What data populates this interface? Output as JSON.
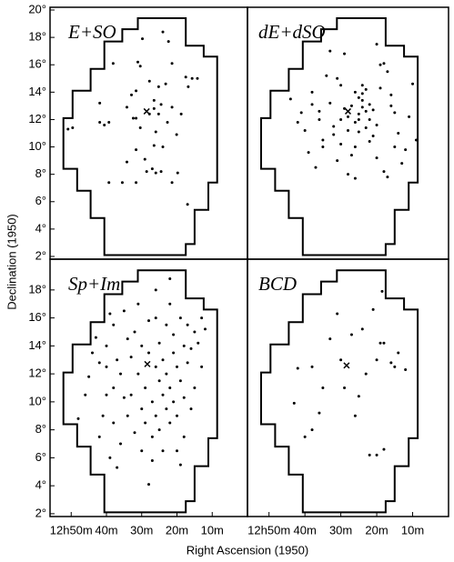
{
  "xlabel": "Right Ascension (1950)",
  "ylabel": "Declination (1950)",
  "boundary": {
    "x": [
      31.1,
      17.5,
      17.5,
      12.4,
      12.4,
      8.6,
      8.6,
      11.1,
      11.1,
      15.0,
      15.0,
      17.5,
      17.5,
      40.6,
      40.6,
      44.5,
      44.5,
      48.3,
      48.3,
      52.2,
      52.2,
      49.6,
      49.6,
      44.5,
      44.5,
      40.6,
      40.6,
      35.5,
      35.5,
      31.1
    ],
    "y": [
      19.4,
      19.4,
      17.4,
      17.4,
      16.6,
      16.6,
      7.4,
      7.4,
      5.4,
      5.4,
      2.9,
      2.9,
      2.1,
      2.1,
      4.8,
      4.8,
      6.8,
      6.8,
      8.4,
      8.4,
      12.1,
      12.1,
      14.1,
      14.1,
      15.7,
      15.7,
      17.7,
      17.7,
      18.6,
      18.6
    ]
  },
  "chart_data": [
    {
      "type": "scatter",
      "title": "E+SO",
      "xlim": [
        56,
        0
      ],
      "ylim": [
        1.8,
        20.2
      ],
      "color": "#000000",
      "yticks": [
        {
          "value": 20,
          "label": "20°"
        },
        {
          "value": 18,
          "label": "18°"
        },
        {
          "value": 16,
          "label": "16°"
        },
        {
          "value": 14,
          "label": "14°"
        },
        {
          "value": 12,
          "label": "12°"
        },
        {
          "value": 10,
          "label": "10°"
        },
        {
          "value": 8,
          "label": "8°"
        },
        {
          "value": 6,
          "label": "6°"
        },
        {
          "value": 4,
          "label": "4°"
        },
        {
          "value": 2,
          "label": "2°"
        }
      ],
      "cross": {
        "x": 28.6,
        "y": 12.6
      },
      "x": [
        29.8,
        24.0,
        22.4,
        31.1,
        30.4,
        38.1,
        21.4,
        17.5,
        15.7,
        14.2,
        16.8,
        27.8,
        25.2,
        23.2,
        31.6,
        32.9,
        41.9,
        34.2,
        26.5,
        24.5,
        21.4,
        27.8,
        26.5,
        25.2,
        18.8,
        32.4,
        31.6,
        41.9,
        40.6,
        39.3,
        49.6,
        50.9,
        30.4,
        26.0,
        22.7,
        20.1,
        26.5,
        24.0,
        31.6,
        29.1,
        34.2,
        27.0,
        26.0,
        24.5,
        28.6,
        31.6,
        35.5,
        21.4,
        39.3,
        17.0,
        19.8
      ],
      "y": [
        17.9,
        18.4,
        17.7,
        16.2,
        15.9,
        16.1,
        16.1,
        15.1,
        15.0,
        15.0,
        14.4,
        14.8,
        14.4,
        14.6,
        14.1,
        13.8,
        13.2,
        12.9,
        13.4,
        13.1,
        12.9,
        12.4,
        12.8,
        12.4,
        12.4,
        12.1,
        12.1,
        11.8,
        11.6,
        11.8,
        11.4,
        11.3,
        11.4,
        11.1,
        11.8,
        10.9,
        10.1,
        10.0,
        9.8,
        9.1,
        8.9,
        8.4,
        8.1,
        8.2,
        8.2,
        7.4,
        7.4,
        7.4,
        7.4,
        5.8,
        8.1
      ]
    },
    {
      "type": "scatter",
      "title": "dE+dSO",
      "xlim": [
        56,
        0
      ],
      "ylim": [
        1.8,
        20.2
      ],
      "color": "#000000",
      "cross": {
        "x": 28.0,
        "y": 12.6
      },
      "x": [
        44,
        41,
        40,
        38,
        36,
        35,
        33,
        32,
        31,
        30,
        29,
        28,
        27,
        26,
        25,
        25,
        24,
        24,
        23,
        23,
        22,
        22,
        21,
        21,
        20,
        19,
        18,
        17,
        16,
        15,
        14,
        12,
        10,
        9,
        34,
        37,
        39,
        30,
        28,
        26,
        27,
        29,
        31,
        33,
        35,
        24,
        23,
        22,
        20,
        18,
        17,
        16,
        25,
        26,
        28,
        30,
        32,
        36,
        38,
        42,
        20,
        19,
        15,
        13,
        11,
        24,
        25,
        26
      ],
      "y": [
        13.5,
        12.5,
        11.2,
        14.0,
        12.0,
        10.5,
        13.2,
        11.5,
        9.0,
        14.5,
        12.8,
        12.2,
        13.0,
        11.8,
        13.6,
        12.4,
        13.9,
        12.9,
        14.2,
        11.4,
        13.1,
        12.0,
        12.7,
        10.8,
        11.6,
        16.0,
        16.1,
        15.5,
        13.8,
        12.5,
        11.0,
        9.8,
        14.6,
        10.5,
        15.2,
        8.5,
        9.6,
        10.2,
        8.0,
        7.7,
        9.4,
        16.8,
        15.0,
        17.0,
        10.0,
        14.5,
        12.6,
        10.4,
        9.2,
        8.2,
        7.8,
        13.0,
        11.1,
        10.0,
        11.2,
        12.0,
        10.9,
        12.6,
        13.1,
        11.8,
        17.5,
        14.3,
        10.0,
        8.8,
        12.2,
        13.4,
        12.0,
        14.0
      ]
    },
    {
      "type": "scatter",
      "title": "Sp+Im",
      "xlim": [
        56,
        0
      ],
      "ylim": [
        1.8,
        20.2
      ],
      "color": "#000000",
      "yticks": [
        {
          "value": 18,
          "label": "18°"
        },
        {
          "value": 16,
          "label": "16°"
        },
        {
          "value": 14,
          "label": "14°"
        },
        {
          "value": 12,
          "label": "12°"
        },
        {
          "value": 10,
          "label": "10°"
        },
        {
          "value": 8,
          "label": "8°"
        },
        {
          "value": 6,
          "label": "6°"
        },
        {
          "value": 4,
          "label": "4°"
        },
        {
          "value": 2,
          "label": "2°"
        }
      ],
      "xticks": [
        {
          "value": 50,
          "label": "12h50m"
        },
        {
          "value": 40,
          "label": "40m"
        },
        {
          "value": 30,
          "label": "30m"
        },
        {
          "value": 20,
          "label": "20m"
        },
        {
          "value": 10,
          "label": "10m"
        }
      ],
      "cross": {
        "x": 28.4,
        "y": 12.7
      },
      "x": [
        43,
        44,
        42,
        45,
        40,
        38,
        37,
        36,
        35,
        34,
        33,
        33,
        32,
        31,
        31,
        30,
        30,
        29,
        29,
        28,
        28,
        27,
        27,
        26,
        26,
        26,
        25,
        25,
        25,
        24,
        24,
        24,
        23,
        23,
        23,
        22,
        22,
        22,
        21,
        21,
        21,
        20,
        20,
        19,
        19,
        18,
        18,
        17,
        17,
        16,
        15,
        14,
        13,
        12,
        13,
        15,
        16,
        18,
        20,
        19,
        28,
        36,
        38,
        39,
        40,
        41,
        42,
        37,
        35,
        34,
        32,
        30,
        27,
        40,
        46,
        48,
        38,
        39,
        22,
        26
      ],
      "y": [
        14.6,
        13.5,
        12.8,
        11.8,
        14.0,
        15.5,
        13.0,
        12.0,
        16.5,
        14.5,
        13.2,
        10.5,
        15.0,
        17.0,
        12.0,
        9.5,
        14.0,
        11.0,
        8.5,
        13.5,
        15.8,
        10.0,
        7.5,
        12.5,
        9.0,
        16.0,
        11.5,
        8.0,
        14.2,
        10.5,
        13.0,
        6.5,
        9.5,
        15.5,
        12.0,
        11.0,
        8.5,
        17.0,
        13.5,
        10.0,
        14.8,
        12.5,
        9.0,
        16.0,
        11.5,
        14.0,
        7.5,
        15.5,
        12.8,
        13.8,
        15.0,
        14.2,
        16.0,
        15.2,
        12.5,
        11.0,
        9.5,
        10.3,
        6.5,
        5.5,
        4.1,
        7.0,
        8.5,
        6.0,
        10.5,
        9.0,
        7.5,
        5.3,
        10.3,
        9.0,
        7.8,
        6.5,
        5.8,
        12.5,
        10.5,
        8.8,
        11.0,
        16.3,
        18.8,
        18.0
      ]
    },
    {
      "type": "scatter",
      "title": "BCD",
      "xlim": [
        56,
        0
      ],
      "ylim": [
        1.8,
        20.2
      ],
      "color": "#000000",
      "xticks": [
        {
          "value": 50,
          "label": "12h50m"
        },
        {
          "value": 40,
          "label": "40m"
        },
        {
          "value": 30,
          "label": "30m"
        },
        {
          "value": 20,
          "label": "20m"
        },
        {
          "value": 10,
          "label": "10m"
        }
      ],
      "cross": {
        "x": 28.4,
        "y": 12.6
      },
      "x": [
        42,
        43,
        40,
        38,
        36,
        35,
        33,
        31,
        30,
        29,
        27,
        26,
        24,
        23,
        21,
        20,
        19,
        18,
        18.5,
        16,
        15,
        14,
        12,
        18,
        20,
        22,
        38,
        25
      ],
      "y": [
        12.4,
        9.9,
        7.5,
        8.0,
        9.2,
        11.0,
        14.5,
        16.3,
        13.0,
        11.0,
        14.8,
        9.0,
        15.2,
        12.0,
        16.6,
        13.0,
        14.2,
        14.2,
        17.9,
        12.8,
        12.5,
        13.5,
        12.3,
        6.6,
        6.2,
        6.2,
        12.5,
        10.4
      ]
    }
  ]
}
